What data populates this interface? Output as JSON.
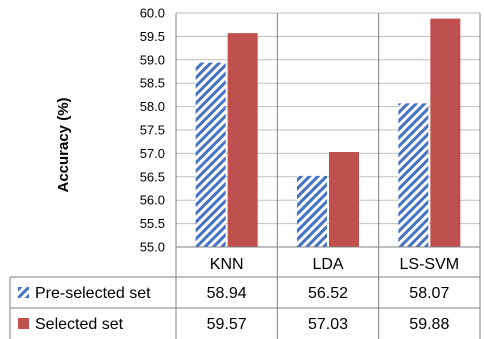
{
  "chart_data": {
    "type": "bar",
    "title": "",
    "xlabel": "",
    "ylabel": "Accuracy (%)",
    "ylim": [
      55.0,
      60.0
    ],
    "yticks": [
      "55.0",
      "55.5",
      "56.0",
      "56.5",
      "57.0",
      "57.5",
      "58.0",
      "58.5",
      "59.0",
      "59.5",
      "60.0"
    ],
    "grid": true,
    "legend": "table-below",
    "categories": [
      "KNN",
      "LDA",
      "LS-SVM"
    ],
    "series": [
      {
        "name": "Pre-selected set",
        "values": [
          58.94,
          56.52,
          58.07
        ],
        "values_text": [
          "58.94",
          "56.52",
          "58.07"
        ],
        "color": "#4472c4",
        "pattern": "diagonal-hatch"
      },
      {
        "name": "Selected set",
        "values": [
          59.57,
          57.03,
          59.88
        ],
        "values_text": [
          "59.57",
          "57.03",
          "59.88"
        ],
        "color": "#c0504d",
        "pattern": "solid"
      }
    ]
  }
}
